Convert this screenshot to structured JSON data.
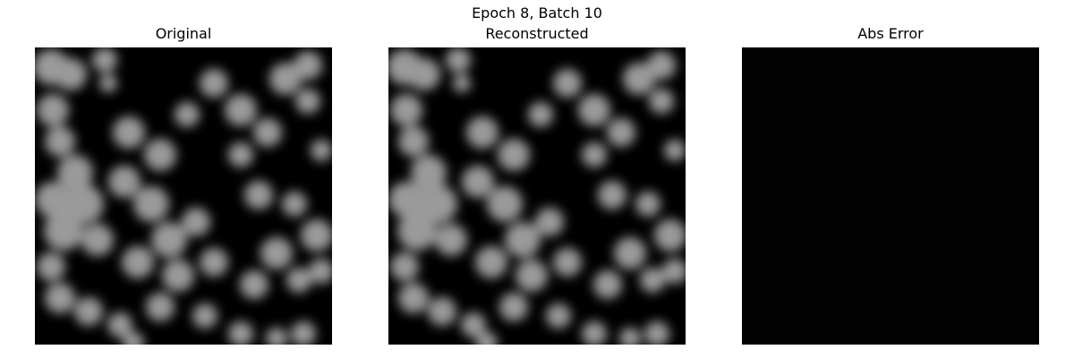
{
  "figure": {
    "title": "Epoch 8, Batch 10"
  },
  "panels": [
    {
      "title": "Original",
      "content": "grayscale blob texture"
    },
    {
      "title": "Reconstructed",
      "content": "grayscale blob texture, near-identical to original"
    },
    {
      "title": "Abs Error",
      "content": "uniform black (near-zero error)"
    }
  ],
  "colors": {
    "background": "#ffffff",
    "image_dark": "#000000",
    "image_light": "#bdbdbd"
  }
}
